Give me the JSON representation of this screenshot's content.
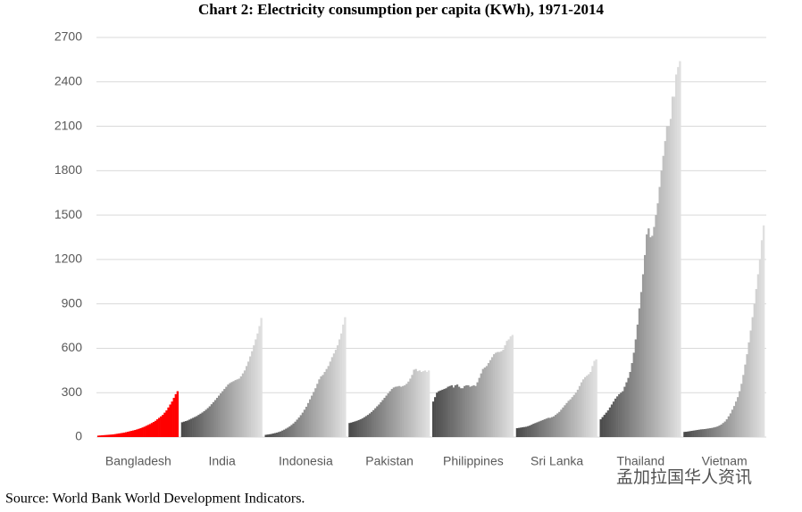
{
  "chart_data": {
    "type": "bar",
    "title": "Chart 2: Electricity consumption per capita (KWh), 1971-2014",
    "source": "Source: World Bank World Development Indicators.",
    "watermark": "孟加拉国华人资讯",
    "categories": [
      "Bangladesh",
      "India",
      "Indonesia",
      "Pakistan",
      "Philippines",
      "Sri Lanka",
      "Thailand",
      "Vietnam"
    ],
    "colors": [
      [
        "#ff0000",
        "#ff0000"
      ],
      [
        "#4a4a4a",
        "#e0e0e0"
      ],
      [
        "#4a4a4a",
        "#e0e0e0"
      ],
      [
        "#4a4a4a",
        "#e0e0e0"
      ],
      [
        "#4a4a4a",
        "#e0e0e0"
      ],
      [
        "#4a4a4a",
        "#e0e0e0"
      ],
      [
        "#4a4a4a",
        "#e0e0e0"
      ],
      [
        "#4a4a4a",
        "#e0e0e0"
      ]
    ],
    "values": [
      [
        10,
        11,
        12,
        13,
        14,
        15,
        16,
        17,
        18,
        20,
        22,
        24,
        26,
        28,
        30,
        33,
        36,
        39,
        42,
        45,
        48,
        52,
        56,
        60,
        65,
        70,
        76,
        82,
        88,
        95,
        102,
        110,
        120,
        130,
        140,
        150,
        165,
        180,
        200,
        220,
        240,
        265,
        290,
        310
      ],
      [
        100,
        104,
        108,
        112,
        118,
        124,
        130,
        136,
        142,
        150,
        158,
        166,
        175,
        185,
        196,
        208,
        222,
        236,
        250,
        265,
        280,
        295,
        310,
        325,
        340,
        355,
        365,
        372,
        378,
        385,
        390,
        395,
        410,
        430,
        450,
        480,
        510,
        545,
        580,
        620,
        660,
        700,
        750,
        805
      ],
      [
        15,
        17,
        19,
        21,
        24,
        27,
        30,
        34,
        38,
        44,
        50,
        57,
        64,
        72,
        82,
        92,
        104,
        118,
        132,
        148,
        165,
        185,
        205,
        230,
        255,
        280,
        305,
        330,
        360,
        390,
        410,
        420,
        440,
        460,
        480,
        510,
        540,
        565,
        590,
        620,
        660,
        700,
        760,
        810
      ],
      [
        95,
        98,
        102,
        106,
        110,
        115,
        120,
        126,
        134,
        142,
        150,
        160,
        170,
        182,
        195,
        208,
        220,
        235,
        250,
        265,
        280,
        295,
        310,
        325,
        335,
        340,
        342,
        345,
        340,
        345,
        350,
        360,
        375,
        395,
        420,
        455,
        460,
        445,
        450,
        440,
        445,
        450,
        440,
        450
      ],
      [
        240,
        270,
        300,
        310,
        315,
        320,
        325,
        330,
        340,
        345,
        350,
        335,
        350,
        355,
        340,
        330,
        330,
        345,
        350,
        350,
        340,
        345,
        350,
        345,
        370,
        400,
        430,
        460,
        470,
        480,
        500,
        520,
        540,
        560,
        570,
        575,
        575,
        580,
        590,
        620,
        650,
        660,
        680,
        690
      ],
      [
        60,
        62,
        64,
        66,
        68,
        70,
        74,
        78,
        84,
        90,
        95,
        100,
        105,
        110,
        115,
        120,
        125,
        130,
        130,
        135,
        140,
        150,
        160,
        170,
        185,
        200,
        215,
        230,
        245,
        255,
        270,
        285,
        300,
        320,
        345,
        370,
        390,
        405,
        415,
        425,
        440,
        480,
        515,
        525
      ],
      [
        120,
        135,
        150,
        165,
        180,
        200,
        220,
        240,
        260,
        275,
        290,
        300,
        310,
        340,
        370,
        400,
        440,
        500,
        570,
        660,
        760,
        870,
        980,
        1100,
        1230,
        1370,
        1410,
        1350,
        1360,
        1420,
        1500,
        1580,
        1690,
        1800,
        1900,
        2000,
        2100,
        2100,
        2150,
        2300,
        2300,
        2450,
        2500,
        2540
      ],
      [
        35,
        36,
        38,
        40,
        42,
        44,
        46,
        48,
        50,
        52,
        53,
        54,
        56,
        58,
        60,
        62,
        65,
        68,
        72,
        78,
        85,
        95,
        105,
        120,
        140,
        160,
        185,
        210,
        240,
        270,
        310,
        360,
        420,
        490,
        560,
        640,
        720,
        810,
        900,
        1000,
        1100,
        1200,
        1330,
        1430
      ]
    ],
    "ylim": [
      0,
      2700
    ],
    "yticks": [
      0,
      300,
      600,
      900,
      1200,
      1500,
      1800,
      2100,
      2400,
      2700
    ],
    "grid": true
  }
}
